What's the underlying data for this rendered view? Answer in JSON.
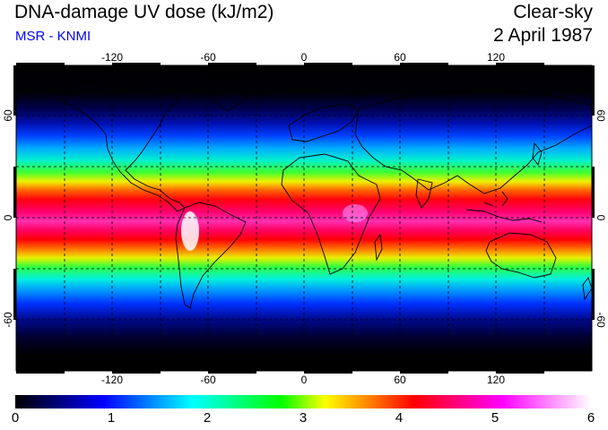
{
  "header": {
    "title": "DNA-damage UV dose (kJ/m2)",
    "source": "MSR - KNMI",
    "condition": "Clear-sky",
    "date": "2 April 1987"
  },
  "map": {
    "lon_ticks": [
      "-120",
      "-60",
      "0",
      "60",
      "120"
    ],
    "lat_ticks": [
      "60",
      "0",
      "-60"
    ],
    "lat_ticks_right": [
      "60",
      "0",
      "-60"
    ]
  },
  "colorbar": {
    "labels": [
      "0",
      "1",
      "2",
      "3",
      "4",
      "5",
      "6"
    ],
    "min": 0,
    "max": 6,
    "colors": [
      "#000000",
      "#000080",
      "#0000ff",
      "#0080ff",
      "#00ffff",
      "#00ff80",
      "#00ff00",
      "#ffff00",
      "#ff8000",
      "#ff0000",
      "#ff0080",
      "#ff00ff",
      "#ff80ff",
      "#ffffff"
    ]
  }
}
